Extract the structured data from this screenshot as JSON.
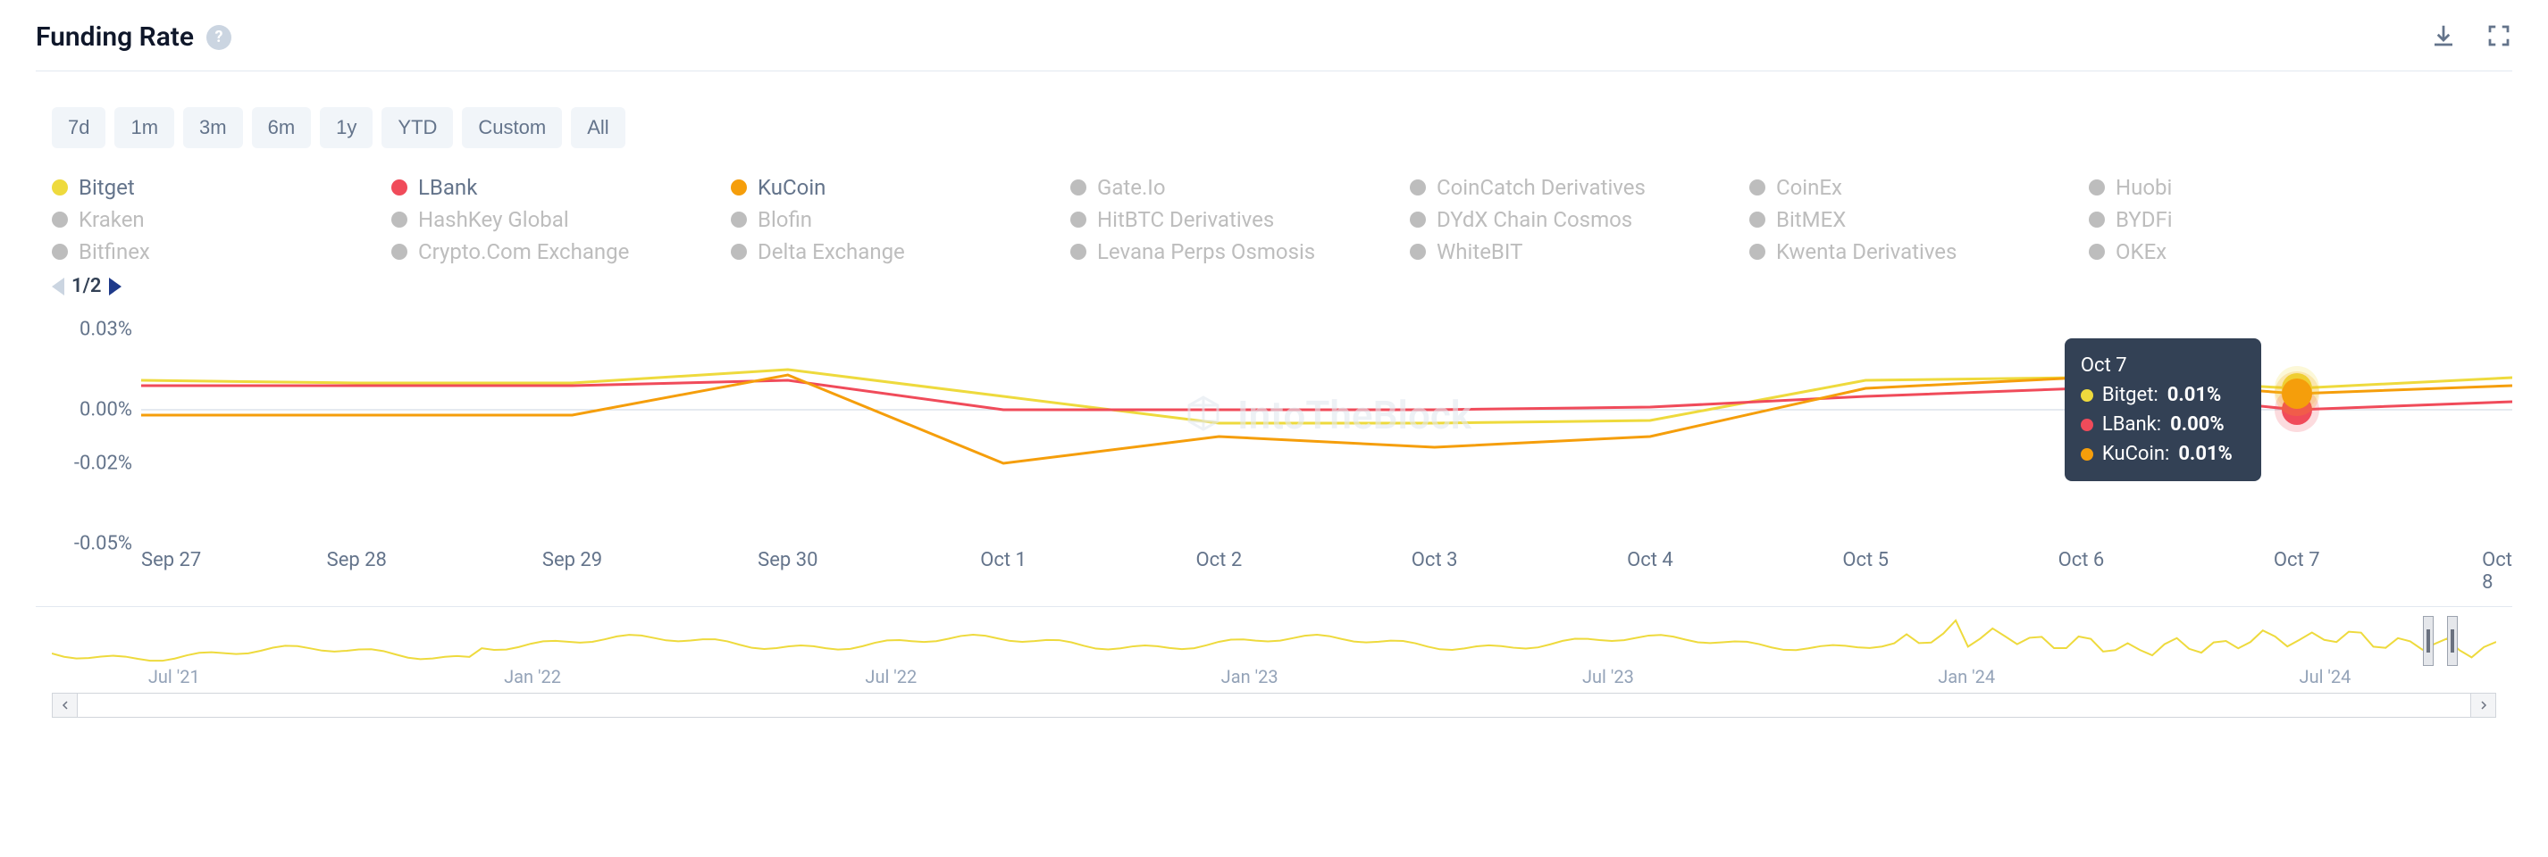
{
  "header": {
    "title": "Funding Rate"
  },
  "ranges": [
    "7d",
    "1m",
    "3m",
    "6m",
    "1y",
    "YTD",
    "Custom",
    "All"
  ],
  "pager": {
    "page": 1,
    "total": 2,
    "label": "1/2"
  },
  "legend": {
    "active": [
      {
        "label": "Bitget",
        "color": "#eeda3d"
      },
      {
        "label": "LBank",
        "color": "#f04b5a"
      },
      {
        "label": "KuCoin",
        "color": "#f59e0b"
      }
    ],
    "inactive_color": "#bdbdbd",
    "rows": [
      [
        "Bitget",
        "LBank",
        "KuCoin",
        "Gate.Io",
        "CoinCatch Derivatives",
        "CoinEx",
        "Huobi"
      ],
      [
        "Kraken",
        "HashKey Global",
        "Blofin",
        "HitBTC Derivatives",
        "DYdX Chain Cosmos",
        "BitMEX",
        "BYDFi"
      ],
      [
        "Bitfinex",
        "Crypto.Com Exchange",
        "Delta Exchange",
        "Levana Perps Osmosis",
        "WhiteBIT",
        "Kwenta Derivatives",
        "OKEx"
      ]
    ]
  },
  "chart": {
    "type": "line",
    "background_color": "#ffffff",
    "axis_color": "#cbd5e1",
    "label_fontsize": 22,
    "label_color": "#64748b",
    "line_width": 3,
    "x_categories": [
      "Sep 27",
      "Sep 28",
      "Sep 29",
      "Sep 30",
      "Oct 1",
      "Oct 2",
      "Oct 3",
      "Oct 4",
      "Oct 5",
      "Oct 6",
      "Oct 7",
      "Oct 8"
    ],
    "y_ticks": [
      0.03,
      0.0,
      -0.02,
      -0.05
    ],
    "y_tick_labels": [
      "0.03%",
      "0.00%",
      "-0.02%",
      "-0.05%"
    ],
    "ylim": [
      -0.05,
      0.03
    ],
    "series": [
      {
        "name": "Bitget",
        "color": "#eeda3d",
        "values": [
          0.011,
          0.01,
          0.01,
          0.015,
          0.005,
          -0.005,
          -0.005,
          -0.004,
          0.011,
          0.012,
          0.008,
          0.012
        ]
      },
      {
        "name": "LBank",
        "color": "#f04b5a",
        "values": [
          0.009,
          0.009,
          0.009,
          0.011,
          0.0,
          0.0,
          0.0,
          0.001,
          0.005,
          0.008,
          0.0,
          0.003
        ]
      },
      {
        "name": "KuCoin",
        "color": "#f59e0b",
        "values": [
          -0.002,
          -0.002,
          -0.002,
          0.013,
          -0.02,
          -0.01,
          -0.014,
          -0.01,
          0.008,
          0.012,
          0.006,
          0.009
        ]
      }
    ],
    "watermark": "IntoTheBlock"
  },
  "tooltip": {
    "date_label": "Oct 7",
    "x_index": 10,
    "rows": [
      {
        "name": "Bitget",
        "value": "0.01%",
        "color": "#eeda3d"
      },
      {
        "name": "LBank",
        "value": "0.00%",
        "color": "#f04b5a"
      },
      {
        "name": "KuCoin",
        "value": "0.01%",
        "color": "#f59e0b"
      }
    ],
    "bg_color": "#334155"
  },
  "navigator": {
    "line_color": "#eeda3d",
    "x_labels": [
      "Jul '21",
      "Jan '22",
      "Jul '22",
      "Jan '23",
      "Jul '23",
      "Jan '24",
      "Jul '24"
    ],
    "handle_left_pct": 97.0,
    "handle_right_pct": 98.0
  }
}
